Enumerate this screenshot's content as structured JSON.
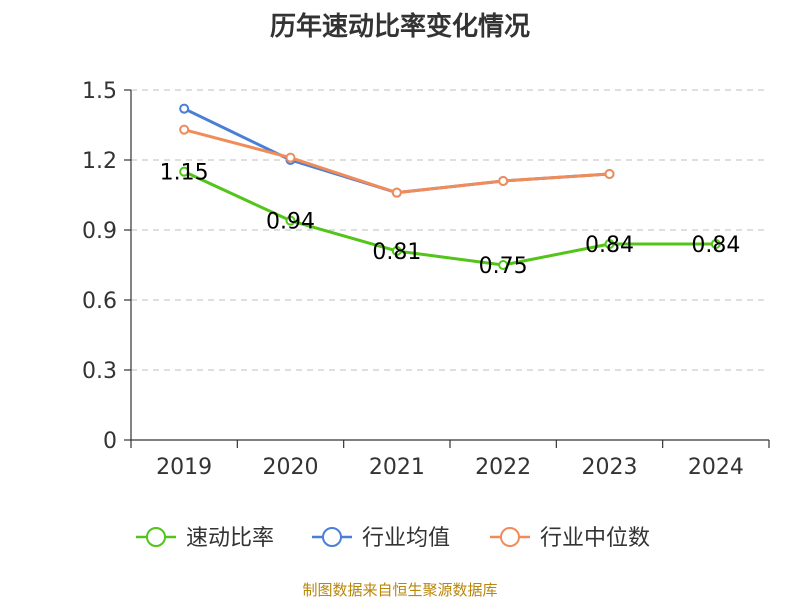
{
  "chart_data": {
    "type": "line",
    "title": "历年速动比率变化情况",
    "categories": [
      "2019",
      "2020",
      "2021",
      "2022",
      "2023",
      "2024"
    ],
    "yticks": [
      "0",
      "0.3",
      "0.6",
      "0.9",
      "1.2",
      "1.5"
    ],
    "ylim": [
      0,
      1.5
    ],
    "grid": true,
    "legend_position": "bottom",
    "series": [
      {
        "name": "速动比率",
        "color": "#52c41a",
        "values": [
          1.15,
          0.94,
          0.81,
          0.75,
          0.84,
          0.84
        ],
        "labels": [
          "1.15",
          "0.94",
          "0.81",
          "0.75",
          "0.84",
          "0.84"
        ]
      },
      {
        "name": "行业均值",
        "color": "#4a7fd6",
        "values": [
          1.42,
          1.2,
          1.06,
          1.11,
          1.14,
          null
        ]
      },
      {
        "name": "行业中位数",
        "color": "#f08c5a",
        "values": [
          1.33,
          1.21,
          1.06,
          1.11,
          1.14,
          null
        ]
      }
    ]
  },
  "source": "制图数据来自恒生聚源数据库"
}
